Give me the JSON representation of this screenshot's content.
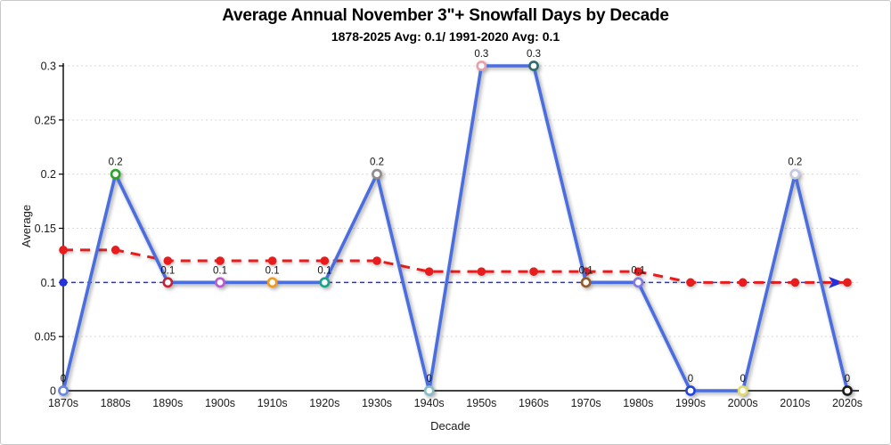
{
  "header": {
    "title": "Average Annual November 3\"+ Snowfall Days by Decade",
    "subtitle": "1878-2025 Avg: 0.1/ 1991-2020 Avg: 0.1"
  },
  "chart_data": {
    "type": "line",
    "title": "Average Annual November 3\"+ Snowfall Days by Decade",
    "subtitle": "1878-2025 Avg: 0.1/ 1991-2020 Avg: 0.1",
    "xlabel": "Decade",
    "ylabel": "Average",
    "ylim": [
      0,
      0.3
    ],
    "yticks": [
      0,
      0.05,
      0.1,
      0.15,
      0.2,
      0.25,
      0.3
    ],
    "grid": true,
    "legend_position": "none",
    "categories": [
      "1870s",
      "1880s",
      "1890s",
      "1900s",
      "1910s",
      "1920s",
      "1930s",
      "1940s",
      "1950s",
      "1960s",
      "1970s",
      "1980s",
      "1990s",
      "2000s",
      "2010s",
      "2020s"
    ],
    "series": [
      {
        "name": "decade-average",
        "type": "line-markers",
        "color": "#4a6ee0",
        "values": [
          0,
          0.2,
          0.1,
          0.1,
          0.1,
          0.1,
          0.2,
          0,
          0.3,
          0.3,
          0.1,
          0.1,
          0,
          0,
          0.2,
          0
        ],
        "point_labels": [
          "0",
          "0.2",
          "0.1",
          "0.1",
          "0.1",
          "0.1",
          "0.2",
          "0",
          "0.3",
          "0.3",
          "0.1",
          "0.1",
          "0",
          "0",
          "0.2",
          "0"
        ],
        "marker_colors": [
          "#6a87dd",
          "#2aa32a",
          "#c52333",
          "#b85ccc",
          "#f09a1e",
          "#1ba389",
          "#8d8d8d",
          "#85bcc6",
          "#e7a0aa",
          "#2e6b6b",
          "#96592b",
          "#8579e0",
          "#2244dd",
          "#e3dc6a",
          "#c4c8e2",
          "#1a1a1a"
        ]
      },
      {
        "name": "trend",
        "type": "dashed-line-markers",
        "color": "#e81c1c",
        "values": [
          0.13,
          0.13,
          0.12,
          0.12,
          0.12,
          0.12,
          0.12,
          0.11,
          0.11,
          0.11,
          0.11,
          0.11,
          0.1,
          0.1,
          0.1,
          0.1
        ]
      },
      {
        "name": "overall-average",
        "type": "reference-line-arrow",
        "color": "#2233dd",
        "value": 0.1
      }
    ]
  }
}
